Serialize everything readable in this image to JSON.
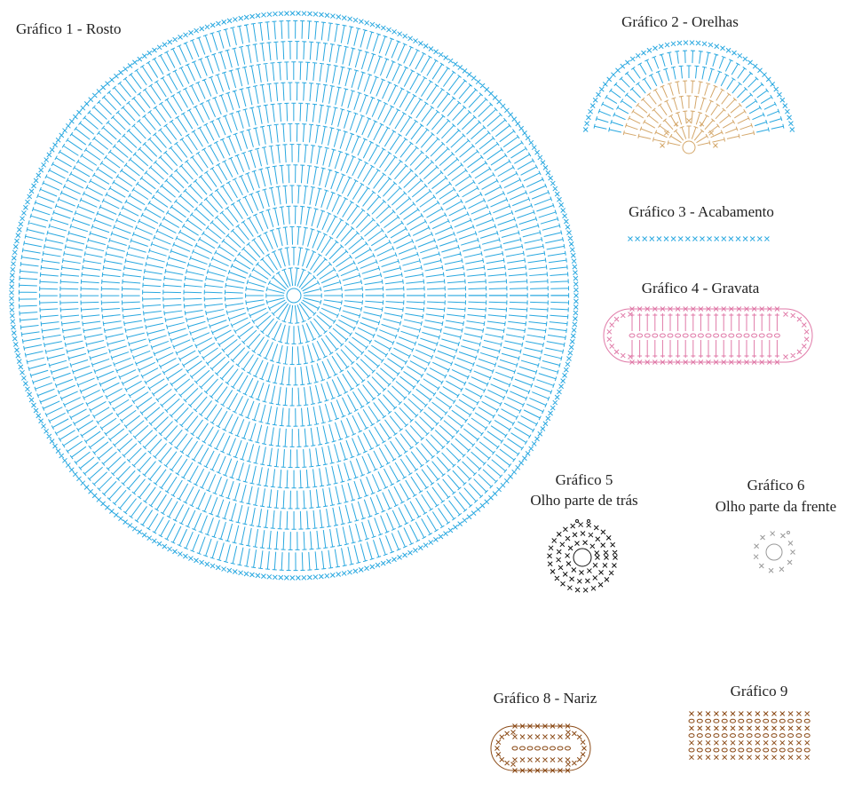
{
  "charts": [
    {
      "title": "Gráfico 1 - Rosto"
    },
    {
      "title": "Gráfico 2 - Orelhas"
    },
    {
      "title": "Gráfico 3 - Acabamento"
    },
    {
      "title": "Gráfico 4 - Gravata"
    },
    {
      "title": "Gráfico 5",
      "subtitle": "Olho parte de trás"
    },
    {
      "title": "Gráfico 6",
      "subtitle": "Olho parte da frente"
    },
    {
      "title": "Gráfico 8 - Nariz"
    },
    {
      "title": "Gráfico 9"
    }
  ]
}
